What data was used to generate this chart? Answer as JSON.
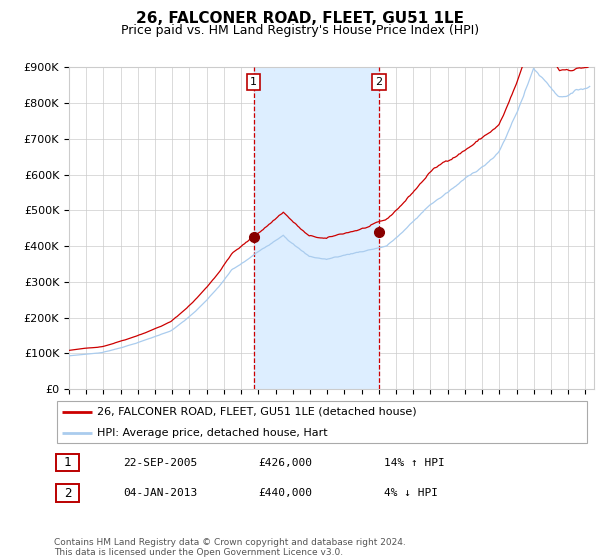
{
  "title": "26, FALCONER ROAD, FLEET, GU51 1LE",
  "subtitle": "Price paid vs. HM Land Registry's House Price Index (HPI)",
  "xlim_start": 1995.0,
  "xlim_end": 2025.5,
  "ylim": [
    0,
    900000
  ],
  "yticks": [
    0,
    100000,
    200000,
    300000,
    400000,
    500000,
    600000,
    700000,
    800000,
    900000
  ],
  "ytick_labels": [
    "£0",
    "£100K",
    "£200K",
    "£300K",
    "£400K",
    "£500K",
    "£600K",
    "£700K",
    "£800K",
    "£900K"
  ],
  "line_color_red": "#cc0000",
  "line_color_blue": "#aaccee",
  "marker_color": "#880000",
  "dashed_line_color": "#cc0000",
  "shade_color": "#ddeeff",
  "purchase1_x": 2005.73,
  "purchase1_y": 426000,
  "purchase2_x": 2013.01,
  "purchase2_y": 440000,
  "legend_label_red": "26, FALCONER ROAD, FLEET, GU51 1LE (detached house)",
  "legend_label_blue": "HPI: Average price, detached house, Hart",
  "note1_num": "1",
  "note1_date": "22-SEP-2005",
  "note1_price": "£426,000",
  "note1_hpi": "14% ↑ HPI",
  "note2_num": "2",
  "note2_date": "04-JAN-2013",
  "note2_price": "£440,000",
  "note2_hpi": "4% ↓ HPI",
  "footer": "Contains HM Land Registry data © Crown copyright and database right 2024.\nThis data is licensed under the Open Government Licence v3.0.",
  "bg_color": "#ffffff",
  "plot_bg_color": "#ffffff",
  "grid_color": "#cccccc"
}
